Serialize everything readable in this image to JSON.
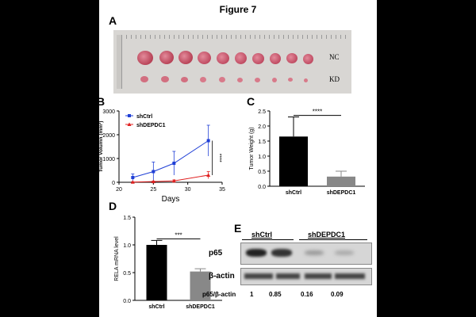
{
  "figure_title": "Figure 7",
  "panels": {
    "A": {
      "label": "A",
      "rows": [
        "NC",
        "KD"
      ]
    },
    "E": {
      "label": "E",
      "groups": [
        "shCtrl",
        "shDEPDC1"
      ],
      "bands": [
        "p65",
        "β-actin"
      ],
      "ratio_label": "p65/β-actin",
      "ratios": [
        "1",
        "0.85",
        "0.16",
        "0.09"
      ]
    }
  },
  "chart_data": [
    {
      "panel": "B",
      "type": "line",
      "xlabel": "Days",
      "ylabel": "Tumor Volumn (mm³)",
      "xlim": [
        20,
        35
      ],
      "ylim": [
        0,
        3000
      ],
      "x_ticks": [
        "20",
        "25",
        "30",
        "35"
      ],
      "y_ticks": [
        "0",
        "1000",
        "2000",
        "3000"
      ],
      "legend_position": "top-left",
      "significance": "****",
      "series": [
        {
          "name": "shCtrl",
          "color": "#1f3fd6",
          "marker": "square",
          "points": [
            {
              "x": 22,
              "y": 200,
              "err": 150
            },
            {
              "x": 25,
              "y": 450,
              "err": 400
            },
            {
              "x": 28,
              "y": 800,
              "err": 500
            },
            {
              "x": 33,
              "y": 1750,
              "err": 650
            }
          ]
        },
        {
          "name": "shDEPDC1",
          "color": "#e02020",
          "marker": "triangle",
          "points": [
            {
              "x": 22,
              "y": 10,
              "err": 10
            },
            {
              "x": 25,
              "y": 30,
              "err": 20
            },
            {
              "x": 28,
              "y": 60,
              "err": 40
            },
            {
              "x": 33,
              "y": 300,
              "err": 150
            }
          ]
        }
      ]
    },
    {
      "panel": "C",
      "type": "bar",
      "ylabel": "Tumor Weight (g)",
      "categories": [
        "shCtrl",
        "shDEPDC1"
      ],
      "values": [
        1.65,
        0.32
      ],
      "errors": [
        0.65,
        0.18
      ],
      "colors": [
        "#000000",
        "#888888"
      ],
      "ylim": [
        0,
        2.5
      ],
      "y_ticks": [
        "0.0",
        "0.5",
        "1.0",
        "1.5",
        "2.0",
        "2.5"
      ],
      "significance": "****"
    },
    {
      "panel": "D",
      "type": "bar",
      "ylabel": "RELA mRNA level",
      "categories": [
        "shCtrl",
        "shDEPDC1"
      ],
      "values": [
        1.0,
        0.52
      ],
      "errors": [
        0.08,
        0.05
      ],
      "colors": [
        "#000000",
        "#888888"
      ],
      "ylim": [
        0,
        1.5
      ],
      "y_ticks": [
        "0.0",
        "0.5",
        "1.0",
        "1.5"
      ],
      "significance": "***"
    }
  ]
}
